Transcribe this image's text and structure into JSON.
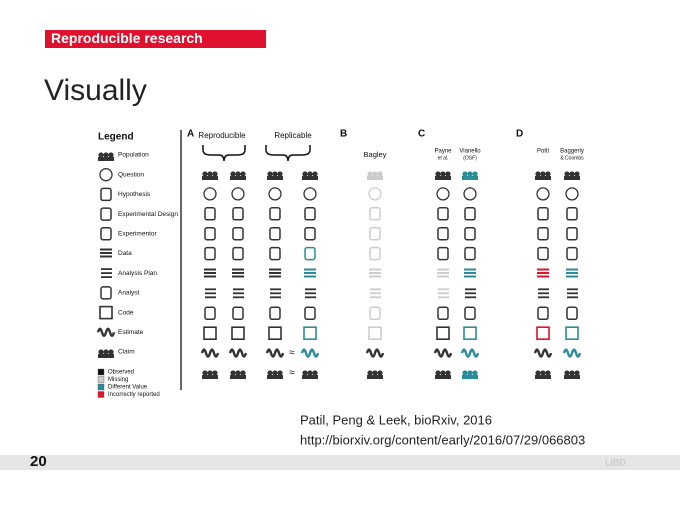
{
  "header": {
    "tag": "Reproducible research",
    "title": "Visually"
  },
  "figure": {
    "legend": {
      "title": "Legend",
      "items": [
        "Population",
        "Question",
        "Hypothesis",
        "Experimental Design",
        "Experimentor",
        "Data",
        "Analysis Plan",
        "Analyst",
        "Code",
        "Estimate",
        "Claim"
      ],
      "key": [
        "Observed",
        "Missing",
        "Different Value",
        "Incorrectly reported"
      ]
    },
    "panels": [
      {
        "label": "A",
        "groups": [
          "Reproducible",
          "Replicable"
        ],
        "approx": "≈"
      },
      {
        "label": "B",
        "columns": [
          "Bagley"
        ]
      },
      {
        "label": "C",
        "columns": [
          "Payne",
          "Vianello"
        ],
        "notes": [
          "et al.",
          "(OSF)"
        ]
      },
      {
        "label": "D",
        "columns": [
          "Potti",
          "Baggerly"
        ],
        "notes": [
          "",
          "& Coombs"
        ]
      }
    ]
  },
  "citation": {
    "source": "Patil, Peng & Leek, bioRxiv, 2016",
    "url": "http://biorxiv.org/content/early/2016/07/29/066803"
  },
  "footer": {
    "page": "20",
    "logo": "LIBD"
  }
}
